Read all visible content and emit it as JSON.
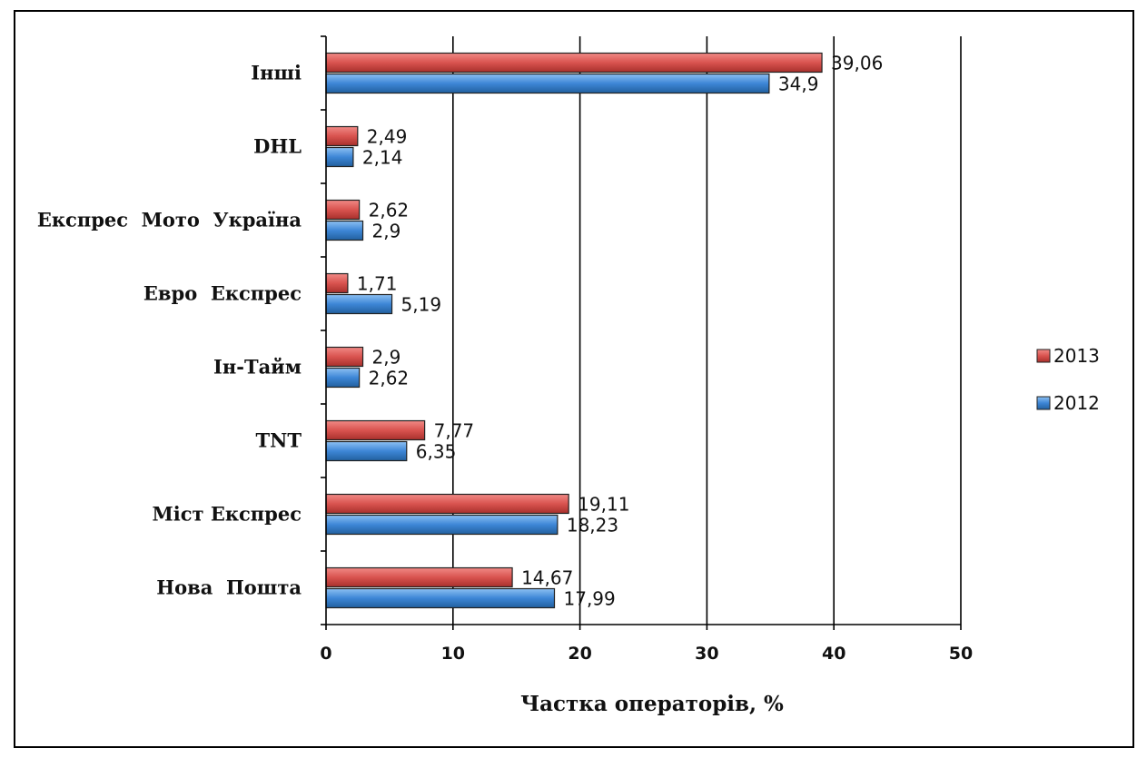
{
  "chart_data": {
    "type": "bar",
    "orientation": "horizontal",
    "categories": [
      "Інші",
      "DHL",
      "Експрес  Мото  Україна",
      "Евро  Експрес",
      "Ін-Тайм",
      "TNT",
      "Міст Експрес",
      "Нова  Пошта"
    ],
    "series": [
      {
        "name": "2013",
        "color": "#d9534f",
        "values": [
          39.06,
          2.49,
          2.62,
          1.71,
          2.9,
          7.77,
          19.11,
          14.67
        ],
        "labels": [
          "39,06",
          "2,49",
          "2,62",
          "1,71",
          "2,9",
          "7,77",
          "19,11",
          "14,67"
        ]
      },
      {
        "name": "2012",
        "color": "#3d86d6",
        "values": [
          34.9,
          2.14,
          2.9,
          5.19,
          2.62,
          6.35,
          18.23,
          17.99
        ],
        "labels": [
          "34,9",
          "2,14",
          "2,9",
          "5,19",
          "2,62",
          "6,35",
          "18,23",
          "17,99"
        ]
      }
    ],
    "xlabel": "Частка операторів, %",
    "ylabel": "",
    "xlim": [
      0,
      50
    ],
    "xticks": [
      "0",
      "10",
      "20",
      "30",
      "40",
      "50"
    ],
    "grid": "vertical major gridlines",
    "legend_position": "right",
    "legend_order": [
      "2013",
      "2012"
    ]
  }
}
